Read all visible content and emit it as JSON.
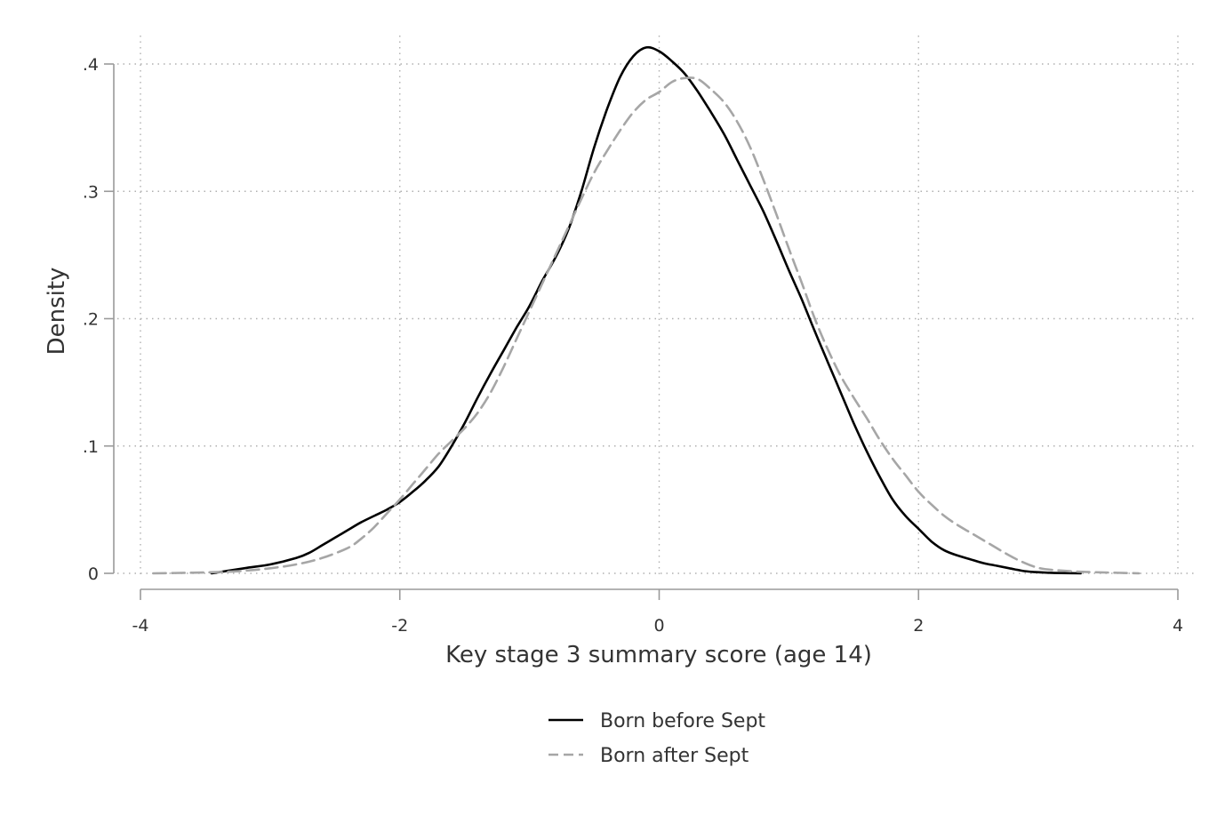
{
  "chart_data": {
    "type": "line",
    "title": "",
    "xlabel": "Key stage 3 summary score (age 14)",
    "ylabel": "Density",
    "xlim": [
      -4,
      4
    ],
    "ylim": [
      0,
      0.4
    ],
    "x_ticks": [
      {
        "value": -4,
        "label": "-4"
      },
      {
        "value": -2,
        "label": "-2"
      },
      {
        "value": 0,
        "label": "0"
      },
      {
        "value": 2,
        "label": "2"
      },
      {
        "value": 4,
        "label": "4"
      }
    ],
    "y_ticks": [
      {
        "value": 0,
        "label": "0"
      },
      {
        "value": 0.1,
        "label": ".1"
      },
      {
        "value": 0.2,
        "label": ".2"
      },
      {
        "value": 0.3,
        "label": ".3"
      },
      {
        "value": 0.4,
        "label": ".4"
      }
    ],
    "grid": true,
    "legend_position": "bottom",
    "series": [
      {
        "name": "Born before Sept",
        "color": "#000000",
        "dash": "solid",
        "x": [
          -3.45,
          -3.2,
          -3.0,
          -2.8,
          -2.7,
          -2.6,
          -2.5,
          -2.4,
          -2.3,
          -2.2,
          -2.1,
          -2.0,
          -1.9,
          -1.8,
          -1.7,
          -1.6,
          -1.5,
          -1.4,
          -1.3,
          -1.2,
          -1.1,
          -1.0,
          -0.9,
          -0.8,
          -0.7,
          -0.6,
          -0.5,
          -0.4,
          -0.3,
          -0.2,
          -0.1,
          0.0,
          0.1,
          0.2,
          0.3,
          0.4,
          0.5,
          0.6,
          0.7,
          0.8,
          0.9,
          1.0,
          1.1,
          1.2,
          1.3,
          1.4,
          1.5,
          1.6,
          1.7,
          1.8,
          1.9,
          2.0,
          2.1,
          2.2,
          2.3,
          2.4,
          2.5,
          2.6,
          2.7,
          2.8,
          2.9,
          3.0,
          3.1,
          3.25
        ],
        "y": [
          0.0,
          0.004,
          0.007,
          0.012,
          0.016,
          0.022,
          0.028,
          0.034,
          0.04,
          0.045,
          0.05,
          0.056,
          0.064,
          0.073,
          0.084,
          0.1,
          0.118,
          0.138,
          0.157,
          0.175,
          0.193,
          0.21,
          0.23,
          0.248,
          0.27,
          0.3,
          0.335,
          0.365,
          0.39,
          0.406,
          0.413,
          0.41,
          0.402,
          0.392,
          0.378,
          0.362,
          0.345,
          0.325,
          0.305,
          0.285,
          0.262,
          0.238,
          0.215,
          0.19,
          0.166,
          0.142,
          0.118,
          0.096,
          0.076,
          0.058,
          0.045,
          0.035,
          0.025,
          0.018,
          0.014,
          0.011,
          0.008,
          0.006,
          0.004,
          0.002,
          0.001,
          0.0005,
          0.0002,
          0.0
        ]
      },
      {
        "name": "Born after Sept",
        "color": "#a6a6a6",
        "dash": "dashed",
        "x": [
          -3.9,
          -3.6,
          -3.4,
          -3.2,
          -3.0,
          -2.8,
          -2.6,
          -2.4,
          -2.3,
          -2.2,
          -2.1,
          -2.0,
          -1.9,
          -1.8,
          -1.7,
          -1.6,
          -1.5,
          -1.4,
          -1.3,
          -1.2,
          -1.1,
          -1.0,
          -0.9,
          -0.8,
          -0.7,
          -0.6,
          -0.5,
          -0.4,
          -0.3,
          -0.2,
          -0.1,
          0.0,
          0.1,
          0.2,
          0.3,
          0.4,
          0.5,
          0.6,
          0.7,
          0.8,
          0.9,
          1.0,
          1.1,
          1.2,
          1.3,
          1.4,
          1.5,
          1.6,
          1.7,
          1.8,
          1.9,
          2.0,
          2.1,
          2.2,
          2.3,
          2.4,
          2.5,
          2.6,
          2.7,
          2.8,
          2.9,
          3.0,
          3.2,
          3.4,
          3.7
        ],
        "y": [
          0.0,
          0.0005,
          0.001,
          0.002,
          0.004,
          0.007,
          0.012,
          0.02,
          0.027,
          0.036,
          0.047,
          0.058,
          0.07,
          0.082,
          0.094,
          0.104,
          0.114,
          0.126,
          0.142,
          0.162,
          0.184,
          0.206,
          0.228,
          0.25,
          0.272,
          0.294,
          0.315,
          0.332,
          0.348,
          0.362,
          0.372,
          0.378,
          0.386,
          0.389,
          0.388,
          0.38,
          0.37,
          0.355,
          0.335,
          0.31,
          0.283,
          0.255,
          0.228,
          0.2,
          0.176,
          0.155,
          0.138,
          0.122,
          0.105,
          0.09,
          0.077,
          0.064,
          0.054,
          0.045,
          0.038,
          0.032,
          0.026,
          0.02,
          0.014,
          0.009,
          0.005,
          0.003,
          0.0015,
          0.0008,
          0.0
        ]
      }
    ]
  }
}
